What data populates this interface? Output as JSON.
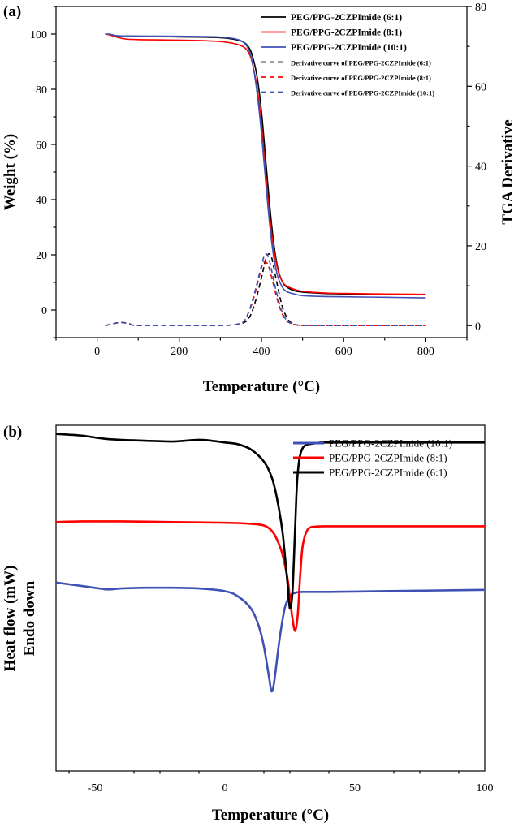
{
  "panel_a_label": "(a)",
  "panel_b_label": "(b)",
  "chart_data": [
    {
      "type": "line",
      "panel": "(a)",
      "xlabel": "Temperature (°C)",
      "ylabel": "Weight (%)",
      "y2label": "TGA Derivative",
      "xlim": [
        -100,
        900
      ],
      "ylim": [
        -10,
        110
      ],
      "y2lim": [
        -3,
        80
      ],
      "xticks": [
        0,
        200,
        400,
        600,
        800
      ],
      "yticks": [
        0,
        20,
        40,
        60,
        80,
        100
      ],
      "y2ticks": [
        0,
        20,
        40,
        60,
        80
      ],
      "legend_position": "top-right",
      "series": [
        {
          "name": "PEG/PPG-2CZPImide (6:1)",
          "axis": "left",
          "style": "solid",
          "color": "#000000",
          "x": [
            20,
            30,
            50,
            100,
            200,
            300,
            350,
            370,
            380,
            390,
            400,
            410,
            420,
            430,
            440,
            450,
            460,
            480,
            500,
            550,
            600,
            700,
            800
          ],
          "y": [
            100,
            99.8,
            99.3,
            99.2,
            99,
            98.7,
            97.5,
            95,
            91,
            84,
            72,
            55,
            38,
            24,
            15,
            10.5,
            8.5,
            7,
            6.5,
            6,
            5.8,
            5.7,
            5.6
          ]
        },
        {
          "name": "PEG/PPG-2CZPImide (8:1)",
          "axis": "left",
          "style": "solid",
          "color": "#ff0000",
          "x": [
            20,
            30,
            50,
            70,
            100,
            200,
            300,
            350,
            370,
            380,
            390,
            400,
            410,
            420,
            430,
            440,
            450,
            460,
            480,
            500,
            550,
            600,
            700,
            800
          ],
          "y": [
            100,
            99.7,
            98.8,
            98.2,
            98,
            97.8,
            97.3,
            95.8,
            93,
            88,
            80,
            67,
            50,
            34,
            22,
            14.5,
            10.5,
            8.8,
            7.5,
            6.8,
            6.2,
            6,
            5.8,
            5.7
          ]
        },
        {
          "name": "PEG/PPG-2CZPImide (10:1)",
          "axis": "left",
          "style": "solid",
          "color": "#3f51b5",
          "x": [
            20,
            30,
            50,
            100,
            200,
            300,
            350,
            370,
            380,
            390,
            400,
            410,
            420,
            430,
            440,
            450,
            460,
            480,
            500,
            550,
            600,
            700,
            800
          ],
          "y": [
            100,
            100,
            99.4,
            99.3,
            99.2,
            98.9,
            97.6,
            94,
            88,
            78,
            64,
            47,
            31,
            19,
            12,
            8.5,
            6.8,
            5.8,
            5.2,
            4.9,
            4.8,
            4.6,
            4.4
          ]
        },
        {
          "name": "Derivative curve of PEG/PPG-2CZPImide (6:1)",
          "axis": "right",
          "style": "dashed",
          "color": "#000000",
          "x": [
            20,
            40,
            60,
            80,
            100,
            200,
            300,
            350,
            370,
            385,
            400,
            410,
            418,
            425,
            435,
            450,
            465,
            480,
            500,
            550,
            600,
            800
          ],
          "y": [
            0,
            0.5,
            0.8,
            0.4,
            0,
            0,
            0,
            0.5,
            2,
            6,
            12,
            16.5,
            18,
            17,
            12,
            5,
            1.5,
            0.4,
            0,
            0,
            0,
            0
          ]
        },
        {
          "name": "Derivative curve of PEG/PPG-2CZPImide (8:1)",
          "axis": "right",
          "style": "dashed",
          "color": "#ff0000",
          "x": [
            20,
            40,
            60,
            80,
            100,
            200,
            300,
            350,
            365,
            380,
            395,
            405,
            415,
            425,
            440,
            455,
            470,
            490,
            510,
            550,
            600,
            800
          ],
          "y": [
            0,
            0.5,
            0.8,
            0.4,
            0,
            0,
            0,
            0.6,
            2.5,
            6.5,
            12.5,
            16,
            15.5,
            12,
            6,
            2,
            0.6,
            0.1,
            0,
            0,
            0,
            0
          ]
        },
        {
          "name": "Derivative curve of PEG/PPG-2CZPImide (10:1)",
          "axis": "right",
          "style": "dashed",
          "color": "#3f51b5",
          "x": [
            20,
            40,
            60,
            80,
            100,
            200,
            300,
            350,
            365,
            380,
            395,
            405,
            412,
            420,
            435,
            450,
            465,
            490,
            510,
            550,
            600,
            800
          ],
          "y": [
            0,
            0.5,
            0.8,
            0.4,
            0,
            0,
            0,
            0.6,
            2.5,
            7,
            13,
            17,
            18,
            16,
            9,
            3.5,
            1,
            0.1,
            0,
            0,
            0,
            0
          ]
        }
      ]
    },
    {
      "type": "line",
      "panel": "(b)",
      "xlabel": "Temperature (°C)",
      "ylabel": "Heat flow (mW)",
      "ylabel2": "Endo down",
      "xlim": [
        -65,
        100
      ],
      "ylim": [
        0,
        1
      ],
      "xticks": [
        -50,
        0,
        50,
        100
      ],
      "legend_position": "top-right",
      "series": [
        {
          "name": "PEG/PPG-2CZPImide (10:1)",
          "color": "#3f51b5",
          "x": [
            -65,
            -55,
            -45,
            -40,
            -30,
            -20,
            -10,
            0,
            5,
            10,
            13,
            15,
            17,
            18,
            19,
            21,
            23,
            25,
            27,
            30,
            40,
            60,
            80,
            100
          ],
          "y": [
            0.545,
            0.535,
            0.525,
            0.528,
            0.53,
            0.53,
            0.528,
            0.52,
            0.505,
            0.47,
            0.42,
            0.36,
            0.27,
            0.23,
            0.26,
            0.38,
            0.47,
            0.505,
            0.515,
            0.518,
            0.518,
            0.52,
            0.522,
            0.524
          ]
        },
        {
          "name": "PEG/PPG-2CZPImide (8:1)",
          "color": "#ff0000",
          "x": [
            -65,
            -55,
            -40,
            -20,
            0,
            10,
            15,
            18,
            20,
            22,
            24,
            25,
            26,
            27,
            28,
            29,
            30,
            32,
            35,
            40,
            60,
            80,
            100
          ],
          "y": [
            0.72,
            0.722,
            0.722,
            0.72,
            0.718,
            0.715,
            0.71,
            0.695,
            0.67,
            0.63,
            0.56,
            0.5,
            0.44,
            0.405,
            0.45,
            0.57,
            0.655,
            0.7,
            0.707,
            0.708,
            0.708,
            0.708,
            0.708
          ]
        },
        {
          "name": "PEG/PPG-2CZPImide (6:1)",
          "color": "#000000",
          "x": [
            -65,
            -55,
            -45,
            -30,
            -20,
            -10,
            -5,
            0,
            5,
            10,
            15,
            18,
            20,
            22,
            23,
            24,
            25,
            26,
            27,
            28,
            30,
            35,
            40,
            60,
            80,
            100
          ],
          "y": [
            0.975,
            0.97,
            0.96,
            0.955,
            0.953,
            0.958,
            0.955,
            0.95,
            0.945,
            0.93,
            0.895,
            0.85,
            0.79,
            0.7,
            0.63,
            0.55,
            0.47,
            0.52,
            0.7,
            0.86,
            0.935,
            0.948,
            0.95,
            0.95,
            0.95,
            0.95
          ]
        }
      ]
    }
  ]
}
